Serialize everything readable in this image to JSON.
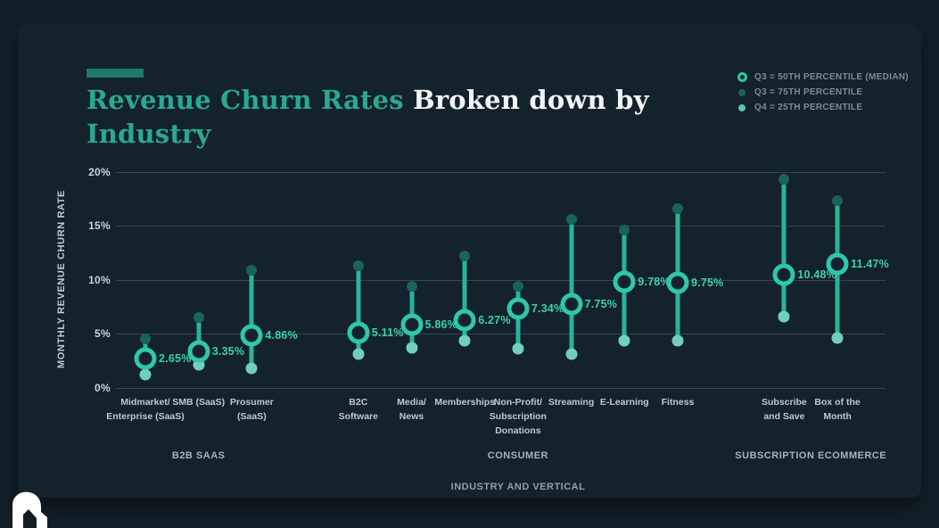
{
  "title": {
    "accent_part": "Revenue Churn Rates ",
    "white_part": "Broken down by",
    "line2": "Industry"
  },
  "legend": {
    "items": [
      {
        "marker": "median-ring-icon",
        "label": "Q3 = 50TH PERCENTILE (MEDIAN)"
      },
      {
        "marker": "dot-dark-icon",
        "label": "Q3 = 75TH PERCENTILE"
      },
      {
        "marker": "dot-light-icon",
        "label": "Q4 = 25TH PERCENTILE"
      }
    ]
  },
  "colors": {
    "panel_bg": "#14222b",
    "page_bg": "#131f28",
    "stem_teal": "#28b39d",
    "median_ring_teal": "#2fc7ab",
    "p75_dot": "#1a6359",
    "p25_dot": "#72cebd",
    "data_label_teal": "#3bcfb4",
    "title_teal": "#2aa893",
    "accent_bar": "#1c7a67",
    "gridline": "#38444d"
  },
  "chart_data": {
    "type": "scatter",
    "title": "Revenue Churn Rates Broken down by Industry",
    "xlabel": "INDUSTRY AND VERTICAL",
    "ylabel": "MONTHLY REVENUE CHURN RATE",
    "ylim": [
      0,
      20
    ],
    "grid": true,
    "legend_position": "top-right",
    "yticks": [
      {
        "value": 0,
        "label": "0%"
      },
      {
        "value": 5,
        "label": "5%"
      },
      {
        "value": 10,
        "label": "10%"
      },
      {
        "value": 15,
        "label": "15%"
      },
      {
        "value": 20,
        "label": "20%"
      }
    ],
    "series_note": "each item: median (50th pct), p75 (75th pct), p25 (25th pct), in % monthly revenue churn",
    "groups": [
      {
        "name": "B2B SAAS",
        "items": [
          {
            "label_lines": [
              "Midmarket/",
              "Enterprise (SaaS)"
            ],
            "slot": 0,
            "median": 2.65,
            "median_label": "2.65%",
            "p75": 4.5,
            "p25": 1.2
          },
          {
            "label_lines": [
              "SMB (SaaS)"
            ],
            "slot": 1,
            "median": 3.35,
            "median_label": "3.35%",
            "p75": 6.5,
            "p25": 2.1
          },
          {
            "label_lines": [
              "Prosumer",
              "(SaaS)"
            ],
            "slot": 2,
            "median": 4.86,
            "median_label": "4.86%",
            "p75": 10.9,
            "p25": 1.8
          }
        ]
      },
      {
        "name": "CONSUMER",
        "items": [
          {
            "label_lines": [
              "B2C",
              "Software"
            ],
            "slot": 4,
            "median": 5.11,
            "median_label": "5.11%",
            "p75": 11.3,
            "p25": 3.1
          },
          {
            "label_lines": [
              "Media/",
              "News"
            ],
            "slot": 5,
            "median": 5.86,
            "median_label": "5.86%",
            "p75": 9.4,
            "p25": 3.7
          },
          {
            "label_lines": [
              "Memberships"
            ],
            "slot": 6,
            "median": 6.27,
            "median_label": "6.27%",
            "p75": 12.2,
            "p25": 4.3
          },
          {
            "label_lines": [
              "Non-Profit/",
              "Subscription",
              "Donations"
            ],
            "slot": 7,
            "median": 7.34,
            "median_label": "7.34%",
            "p75": 9.4,
            "p25": 3.6
          },
          {
            "label_lines": [
              "Streaming"
            ],
            "slot": 8,
            "median": 7.75,
            "median_label": "7.75%",
            "p75": 15.6,
            "p25": 3.1
          },
          {
            "label_lines": [
              "E-Learning"
            ],
            "slot": 9,
            "median": 9.78,
            "median_label": "9.78%",
            "p75": 14.6,
            "p25": 4.3
          },
          {
            "label_lines": [
              "Fitness"
            ],
            "slot": 10,
            "median": 9.75,
            "median_label": "9.75%",
            "p75": 16.6,
            "p25": 4.3
          }
        ]
      },
      {
        "name": "SUBSCRIPTION ECOMMERCE",
        "items": [
          {
            "label_lines": [
              "Subscribe",
              "and Save"
            ],
            "slot": 12,
            "median": 10.48,
            "median_label": "10.48%",
            "p75": 19.3,
            "p25": 6.6
          },
          {
            "label_lines": [
              "Box of the",
              "Month"
            ],
            "slot": 13,
            "median": 11.47,
            "median_label": "11.47%",
            "p75": 17.3,
            "p25": 4.6
          }
        ]
      }
    ]
  }
}
